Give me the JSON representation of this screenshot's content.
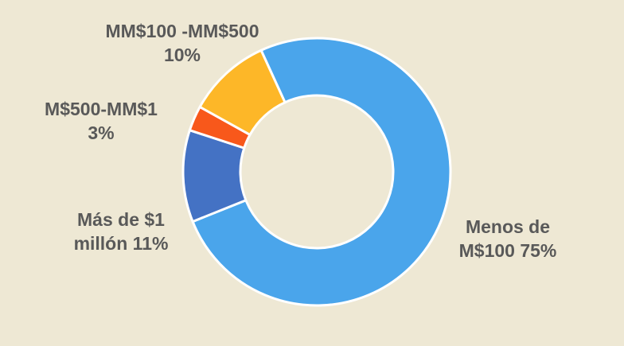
{
  "chart_data": {
    "type": "pie",
    "subtype": "donut",
    "title": "",
    "legend": "none",
    "background_color": "#EEE8D4",
    "label_color": "#595959",
    "separator_color": "#FFFFFF",
    "start_angle_deg": -24.6,
    "direction": "clockwise",
    "hole_ratio": 0.57,
    "categories": [
      "Menos de M$100",
      "Más de $1 millón",
      "M$500-MM$1",
      "MM$100 -MM$500"
    ],
    "values": [
      75,
      11,
      3,
      10
    ],
    "slices": [
      {
        "label": "Menos de M$100",
        "pct": 75,
        "color": "#4AA5EB",
        "display": [
          "Menos de",
          "M$100 75%"
        ]
      },
      {
        "label": "Más de $1 millón",
        "pct": 11,
        "color": "#4472C4",
        "display": [
          "Más de $1",
          "millón 11%"
        ]
      },
      {
        "label": "M$500-MM$1",
        "pct": 3,
        "color": "#F8581B",
        "display": [
          "M$500-MM$1",
          "3%"
        ]
      },
      {
        "label": "MM$100 -MM$500",
        "pct": 10,
        "color": "#FDB728",
        "display": [
          "MM$100 -MM$500",
          "10%"
        ]
      }
    ]
  }
}
